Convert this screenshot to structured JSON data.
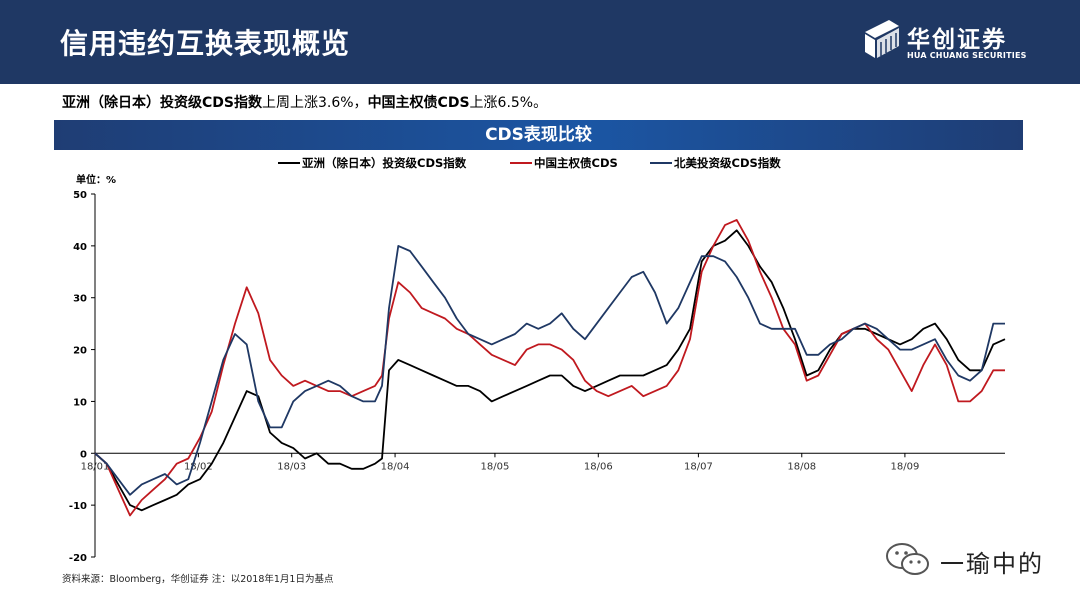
{
  "header": {
    "title": "信用违约互换表现概览",
    "logo_name": "华创证券",
    "logo_sub": "HUA CHUANG SECURITIES"
  },
  "summary": {
    "part1_bold": "亚洲（除日本）投资级CDS指数",
    "part2": "上周上涨3.6%，",
    "part3_bold": "中国主权债CDS",
    "part4": "上涨6.5%。"
  },
  "chart_title": "CDS表现比较",
  "source": "资料来源：Bloomberg，华创证券   注：以2018年1月1日为基点",
  "watermark": "一瑜中的",
  "chart_data": {
    "type": "line",
    "unit_label": "单位：%",
    "ylim": [
      -20,
      50
    ],
    "yticks": [
      -20,
      -10,
      0,
      10,
      20,
      30,
      40,
      50
    ],
    "grid": false,
    "legend_position": "top",
    "x_range_weeks": [
      0,
      39
    ],
    "x_tick_weeks": [
      0,
      4.43,
      8.43,
      12.86,
      17.14,
      21.57,
      25.86,
      30.29,
      34.71
    ],
    "x_tick_labels": [
      "18/01",
      "18/02",
      "18/03",
      "18/04",
      "18/05",
      "18/06",
      "18/07",
      "18/08",
      "18/09"
    ],
    "x_unit": "weeks from 2018-01-01",
    "series": [
      {
        "name": "亚洲（除日本）投资级CDS指数",
        "color": "#000000",
        "points": [
          [
            0,
            0
          ],
          [
            0.5,
            -2
          ],
          [
            1,
            -6
          ],
          [
            1.5,
            -10
          ],
          [
            2,
            -11
          ],
          [
            2.5,
            -10
          ],
          [
            3,
            -9
          ],
          [
            3.5,
            -8
          ],
          [
            4,
            -6
          ],
          [
            4.5,
            -5
          ],
          [
            5,
            -2
          ],
          [
            5.5,
            2
          ],
          [
            6,
            7
          ],
          [
            6.5,
            12
          ],
          [
            7,
            11
          ],
          [
            7.5,
            4
          ],
          [
            8,
            2
          ],
          [
            8.5,
            1
          ],
          [
            9,
            -1
          ],
          [
            9.5,
            0
          ],
          [
            10,
            -2
          ],
          [
            10.5,
            -2
          ],
          [
            11,
            -3
          ],
          [
            11.5,
            -3
          ],
          [
            12,
            -2
          ],
          [
            12.3,
            -1
          ],
          [
            12.6,
            16
          ],
          [
            13,
            18
          ],
          [
            13.5,
            17
          ],
          [
            14,
            16
          ],
          [
            14.5,
            15
          ],
          [
            15,
            14
          ],
          [
            15.5,
            13
          ],
          [
            16,
            13
          ],
          [
            16.5,
            12
          ],
          [
            17,
            10
          ],
          [
            17.5,
            11
          ],
          [
            18,
            12
          ],
          [
            18.5,
            13
          ],
          [
            19,
            14
          ],
          [
            19.5,
            15
          ],
          [
            20,
            15
          ],
          [
            20.5,
            13
          ],
          [
            21,
            12
          ],
          [
            21.5,
            13
          ],
          [
            22,
            14
          ],
          [
            22.5,
            15
          ],
          [
            23,
            15
          ],
          [
            23.5,
            15
          ],
          [
            24,
            16
          ],
          [
            24.5,
            17
          ],
          [
            25,
            20
          ],
          [
            25.5,
            24
          ],
          [
            26,
            37
          ],
          [
            26.5,
            40
          ],
          [
            27,
            41
          ],
          [
            27.5,
            43
          ],
          [
            28,
            40
          ],
          [
            28.5,
            36
          ],
          [
            29,
            33
          ],
          [
            29.5,
            28
          ],
          [
            30,
            22
          ],
          [
            30.5,
            15
          ],
          [
            31,
            16
          ],
          [
            31.5,
            20
          ],
          [
            32,
            23
          ],
          [
            32.5,
            24
          ],
          [
            33,
            24
          ],
          [
            33.5,
            23
          ],
          [
            34,
            22
          ],
          [
            34.5,
            21
          ],
          [
            35,
            22
          ],
          [
            35.5,
            24
          ],
          [
            36,
            25
          ],
          [
            36.5,
            22
          ],
          [
            37,
            18
          ],
          [
            37.5,
            16
          ],
          [
            38,
            16
          ],
          [
            38.5,
            21
          ],
          [
            39,
            22
          ]
        ]
      },
      {
        "name": "中国主权债CDS",
        "color": "#c0191f",
        "points": [
          [
            0,
            0
          ],
          [
            0.5,
            -2
          ],
          [
            1,
            -7
          ],
          [
            1.5,
            -12
          ],
          [
            2,
            -9
          ],
          [
            2.5,
            -7
          ],
          [
            3,
            -5
          ],
          [
            3.5,
            -2
          ],
          [
            4,
            -1
          ],
          [
            4.5,
            3
          ],
          [
            5,
            8
          ],
          [
            5.5,
            17
          ],
          [
            6,
            25
          ],
          [
            6.5,
            32
          ],
          [
            7,
            27
          ],
          [
            7.5,
            18
          ],
          [
            8,
            15
          ],
          [
            8.5,
            13
          ],
          [
            9,
            14
          ],
          [
            9.5,
            13
          ],
          [
            10,
            12
          ],
          [
            10.5,
            12
          ],
          [
            11,
            11
          ],
          [
            11.5,
            12
          ],
          [
            12,
            13
          ],
          [
            12.3,
            15
          ],
          [
            12.6,
            26
          ],
          [
            13,
            33
          ],
          [
            13.5,
            31
          ],
          [
            14,
            28
          ],
          [
            14.5,
            27
          ],
          [
            15,
            26
          ],
          [
            15.5,
            24
          ],
          [
            16,
            23
          ],
          [
            16.5,
            21
          ],
          [
            17,
            19
          ],
          [
            17.5,
            18
          ],
          [
            18,
            17
          ],
          [
            18.5,
            20
          ],
          [
            19,
            21
          ],
          [
            19.5,
            21
          ],
          [
            20,
            20
          ],
          [
            20.5,
            18
          ],
          [
            21,
            14
          ],
          [
            21.5,
            12
          ],
          [
            22,
            11
          ],
          [
            22.5,
            12
          ],
          [
            23,
            13
          ],
          [
            23.5,
            11
          ],
          [
            24,
            12
          ],
          [
            24.5,
            13
          ],
          [
            25,
            16
          ],
          [
            25.5,
            22
          ],
          [
            26,
            35
          ],
          [
            26.5,
            40
          ],
          [
            27,
            44
          ],
          [
            27.5,
            45
          ],
          [
            28,
            41
          ],
          [
            28.5,
            35
          ],
          [
            29,
            30
          ],
          [
            29.5,
            24
          ],
          [
            30,
            21
          ],
          [
            30.5,
            14
          ],
          [
            31,
            15
          ],
          [
            31.5,
            19
          ],
          [
            32,
            23
          ],
          [
            32.5,
            24
          ],
          [
            33,
            25
          ],
          [
            33.5,
            22
          ],
          [
            34,
            20
          ],
          [
            34.5,
            16
          ],
          [
            35,
            12
          ],
          [
            35.5,
            17
          ],
          [
            36,
            21
          ],
          [
            36.5,
            17
          ],
          [
            37,
            10
          ],
          [
            37.5,
            10
          ],
          [
            38,
            12
          ],
          [
            38.5,
            16
          ],
          [
            39,
            16
          ]
        ]
      },
      {
        "name": "北美投资级CDS指数",
        "color": "#1f3864",
        "points": [
          [
            0,
            0
          ],
          [
            0.5,
            -2
          ],
          [
            1,
            -5
          ],
          [
            1.5,
            -8
          ],
          [
            2,
            -6
          ],
          [
            2.5,
            -5
          ],
          [
            3,
            -4
          ],
          [
            3.5,
            -6
          ],
          [
            4,
            -5
          ],
          [
            4.5,
            2
          ],
          [
            5,
            10
          ],
          [
            5.5,
            18
          ],
          [
            6,
            23
          ],
          [
            6.5,
            21
          ],
          [
            7,
            10
          ],
          [
            7.5,
            5
          ],
          [
            8,
            5
          ],
          [
            8.5,
            10
          ],
          [
            9,
            12
          ],
          [
            9.5,
            13
          ],
          [
            10,
            14
          ],
          [
            10.5,
            13
          ],
          [
            11,
            11
          ],
          [
            11.5,
            10
          ],
          [
            12,
            10
          ],
          [
            12.3,
            13
          ],
          [
            12.6,
            28
          ],
          [
            13,
            40
          ],
          [
            13.5,
            39
          ],
          [
            14,
            36
          ],
          [
            14.5,
            33
          ],
          [
            15,
            30
          ],
          [
            15.5,
            26
          ],
          [
            16,
            23
          ],
          [
            16.5,
            22
          ],
          [
            17,
            21
          ],
          [
            17.5,
            22
          ],
          [
            18,
            23
          ],
          [
            18.5,
            25
          ],
          [
            19,
            24
          ],
          [
            19.5,
            25
          ],
          [
            20,
            27
          ],
          [
            20.5,
            24
          ],
          [
            21,
            22
          ],
          [
            21.5,
            25
          ],
          [
            22,
            28
          ],
          [
            22.5,
            31
          ],
          [
            23,
            34
          ],
          [
            23.5,
            35
          ],
          [
            24,
            31
          ],
          [
            24.5,
            25
          ],
          [
            25,
            28
          ],
          [
            25.5,
            33
          ],
          [
            26,
            38
          ],
          [
            26.5,
            38
          ],
          [
            27,
            37
          ],
          [
            27.5,
            34
          ],
          [
            28,
            30
          ],
          [
            28.5,
            25
          ],
          [
            29,
            24
          ],
          [
            29.5,
            24
          ],
          [
            30,
            24
          ],
          [
            30.5,
            19
          ],
          [
            31,
            19
          ],
          [
            31.5,
            21
          ],
          [
            32,
            22
          ],
          [
            32.5,
            24
          ],
          [
            33,
            25
          ],
          [
            33.5,
            24
          ],
          [
            34,
            22
          ],
          [
            34.5,
            20
          ],
          [
            35,
            20
          ],
          [
            35.5,
            21
          ],
          [
            36,
            22
          ],
          [
            36.5,
            18
          ],
          [
            37,
            15
          ],
          [
            37.5,
            14
          ],
          [
            38,
            16
          ],
          [
            38.5,
            25
          ],
          [
            39,
            25
          ]
        ]
      }
    ]
  }
}
